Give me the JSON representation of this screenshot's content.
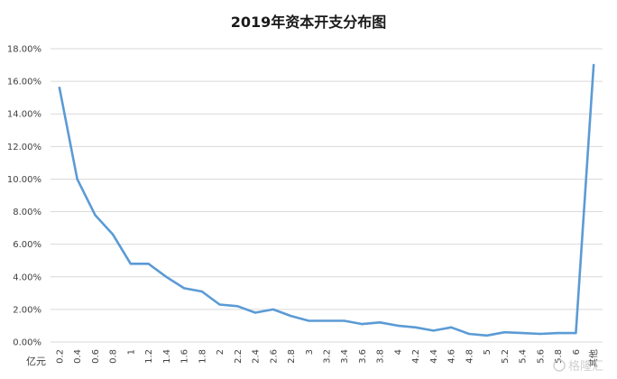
{
  "chart_data": {
    "type": "line",
    "title": "2019年资本开支分布图",
    "x_unit_label": "亿元",
    "categories": [
      "0.2",
      "0.4",
      "0.6",
      "0.8",
      "1",
      "1.2",
      "1.4",
      "1.6",
      "1.8",
      "2",
      "2.2",
      "2.4",
      "2.6",
      "2.8",
      "3",
      "3.2",
      "3.4",
      "3.6",
      "3.8",
      "4",
      "4.2",
      "4.4",
      "4.6",
      "4.8",
      "5",
      "5.2",
      "5.4",
      "5.6",
      "5.8",
      "6",
      "其他"
    ],
    "x_tick_labels": [
      "0.2",
      "0.4",
      "0.6",
      "0.8",
      "1",
      "1.2",
      "1.4",
      "1.6",
      "1.8",
      "2",
      "2.2",
      "2.4",
      "2.6",
      "2.8",
      "3",
      "3.2",
      "3.4",
      "3.6",
      "3.8",
      "4",
      "4.2",
      "4.4",
      "4.6",
      "4.8",
      "5",
      "5.2",
      "5.4",
      "5.6",
      "5.8",
      "6",
      "其他"
    ],
    "y_tick_labels": [
      "0.00%",
      "2.00%",
      "4.00%",
      "6.00%",
      "8.00%",
      "10.00%",
      "12.00%",
      "14.00%",
      "16.00%",
      "18.00%"
    ],
    "ylim": [
      0,
      0.18
    ],
    "y_format": "percent",
    "grid": true,
    "series": [
      {
        "color": "#5b9bd5",
        "values": [
          0.156,
          0.1,
          0.078,
          0.066,
          0.048,
          0.048,
          0.04,
          0.033,
          0.031,
          0.023,
          0.022,
          0.018,
          0.02,
          0.016,
          0.013,
          0.013,
          0.013,
          0.011,
          0.012,
          0.01,
          0.009,
          0.007,
          0.009,
          0.005,
          0.004,
          0.006,
          0.0055,
          0.005,
          0.0055,
          0.0055,
          0.17
        ]
      }
    ]
  },
  "watermark": {
    "text": "格隆汇"
  }
}
